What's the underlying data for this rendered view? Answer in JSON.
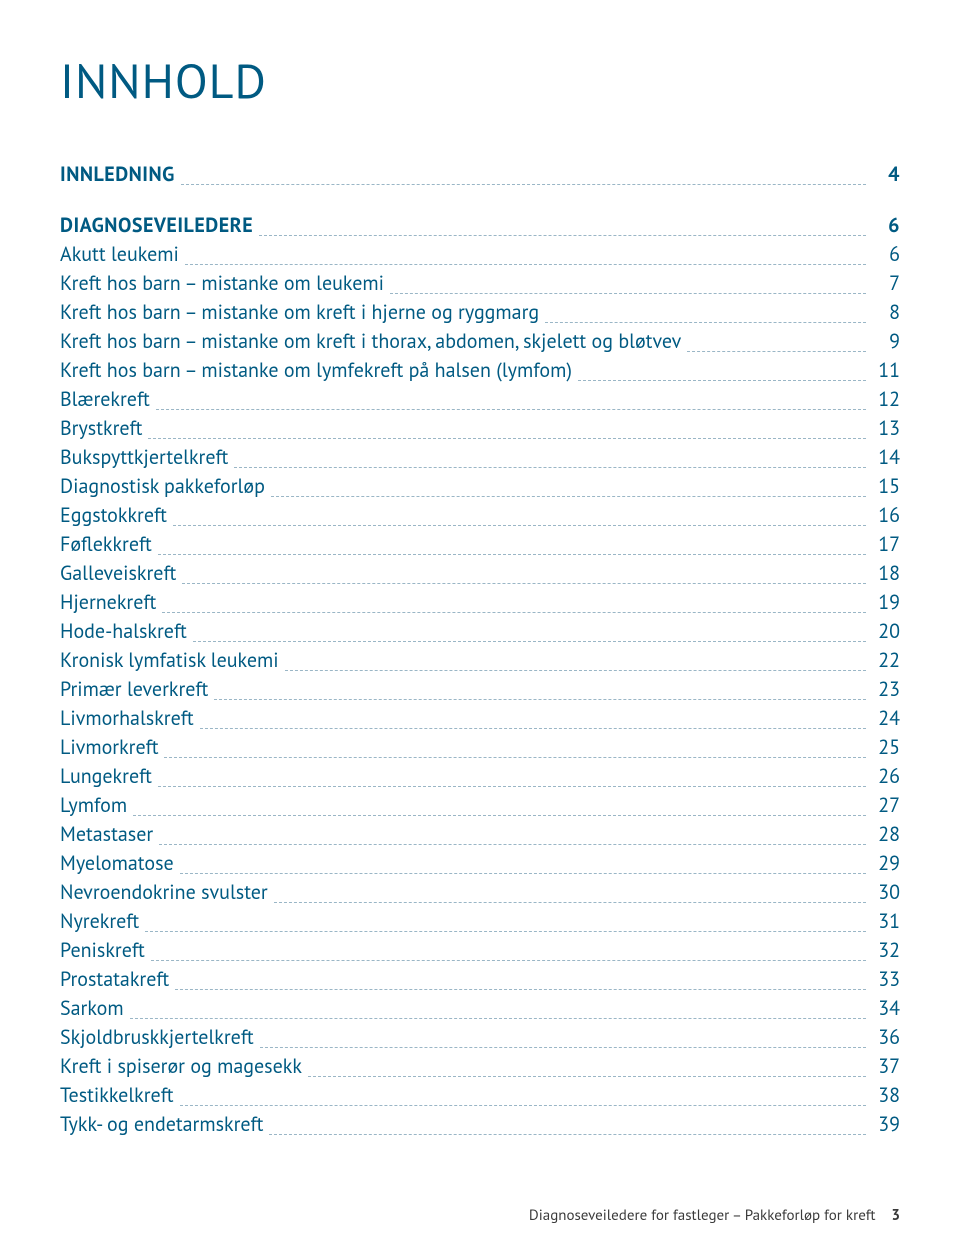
{
  "title": "INNHOLD",
  "sections": [
    {
      "label": "INNLEDNING",
      "page": "4",
      "bold": true
    },
    {
      "spacer": true
    },
    {
      "label": "DIAGNOSEVEILEDERE",
      "page": "6",
      "bold": true
    },
    {
      "label": "Akutt leukemi",
      "page": "6"
    },
    {
      "label": "Kreft hos barn – mistanke om leukemi",
      "page": "7"
    },
    {
      "label": "Kreft hos barn – mistanke om kreft i hjerne og ryggmarg",
      "page": "8"
    },
    {
      "label": "Kreft hos barn – mistanke om kreft i thorax, abdomen, skjelett og bløtvev",
      "page": "9"
    },
    {
      "label": "Kreft hos barn – mistanke om lymfekreft på halsen (lymfom)",
      "page": "11"
    },
    {
      "label": "Blærekreft",
      "page": "12"
    },
    {
      "label": "Brystkreft",
      "page": "13"
    },
    {
      "label": "Bukspyttkjertelkreft",
      "page": "14"
    },
    {
      "label": "Diagnostisk pakkeforløp",
      "page": "15"
    },
    {
      "label": "Eggstokkreft",
      "page": "16"
    },
    {
      "label": "Føflekkreft",
      "page": "17"
    },
    {
      "label": "Galleveiskreft",
      "page": "18"
    },
    {
      "label": "Hjernekreft",
      "page": "19"
    },
    {
      "label": "Hode-halskreft",
      "page": "20"
    },
    {
      "label": "Kronisk lymfatisk leukemi",
      "page": "22"
    },
    {
      "label": "Primær leverkreft",
      "page": "23"
    },
    {
      "label": "Livmorhalskreft",
      "page": "24"
    },
    {
      "label": "Livmorkreft",
      "page": "25"
    },
    {
      "label": "Lungekreft",
      "page": "26"
    },
    {
      "label": "Lymfom",
      "page": "27"
    },
    {
      "label": "Metastaser",
      "page": "28"
    },
    {
      "label": "Myelomatose",
      "page": "29"
    },
    {
      "label": "Nevroendokrine svulster",
      "page": "30"
    },
    {
      "label": "Nyrekreft",
      "page": "31"
    },
    {
      "label": "Peniskreft",
      "page": "32"
    },
    {
      "label": "Prostatakreft",
      "page": "33"
    },
    {
      "label": "Sarkom",
      "page": "34"
    },
    {
      "label": "Skjoldbruskkjertelkreft",
      "page": "36"
    },
    {
      "label": "Kreft i spiserør og magesekk",
      "page": "37"
    },
    {
      "label": "Testikkelkreft",
      "page": "38"
    },
    {
      "label": "Tykk- og endetarmskreft",
      "page": "39"
    }
  ],
  "footer": {
    "text": "Diagnoseveiledere for fastleger – Pakkeforløp for kreft",
    "page": "3"
  },
  "colors": {
    "heading": "#005a82",
    "dots": "#9ab6c6",
    "footer_text": "#3a3a3a",
    "background": "#ffffff"
  },
  "typography": {
    "title_fontsize": 48,
    "row_fontsize": 20,
    "footer_fontsize": 15,
    "font_family": "PT Sans"
  }
}
